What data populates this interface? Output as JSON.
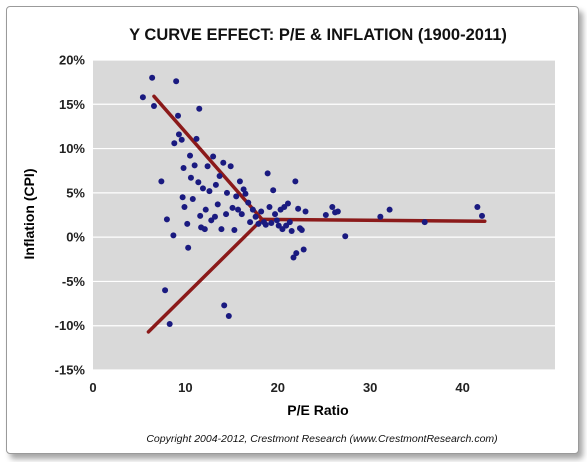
{
  "chart_data": {
    "type": "scatter",
    "title": "Y CURVE EFFECT: P/E & INFLATION (1900-2011)",
    "xlabel": "P/E Ratio",
    "ylabel": "Inflation (CPI)",
    "xlim": [
      0,
      50
    ],
    "ylim": [
      -15,
      20
    ],
    "xticks": [
      0,
      10,
      20,
      30,
      40
    ],
    "xtick_labels": [
      "0",
      "10",
      "20",
      "30",
      "40"
    ],
    "yticks": [
      -15,
      -10,
      -5,
      0,
      5,
      10,
      15,
      20
    ],
    "ytick_labels": [
      "-15%",
      "-10%",
      "-5%",
      "0%",
      "5%",
      "10%",
      "15%",
      "20%"
    ],
    "grid": "horizontal",
    "legend": "none",
    "colors": {
      "points": "#1a1a80",
      "lines": "#8b1a1a",
      "plot_bg": "#d9d9d9",
      "grid": "#ffffff"
    },
    "series": [
      {
        "type": "scatter",
        "points": [
          [
            5.4,
            15.8
          ],
          [
            6.4,
            18.0
          ],
          [
            6.6,
            14.8
          ],
          [
            7.4,
            6.3
          ],
          [
            7.8,
            -6.0
          ],
          [
            8.0,
            2.0
          ],
          [
            8.3,
            -9.8
          ],
          [
            8.7,
            0.2
          ],
          [
            8.8,
            10.6
          ],
          [
            9.0,
            17.6
          ],
          [
            9.2,
            13.7
          ],
          [
            9.3,
            11.6
          ],
          [
            9.6,
            11.0
          ],
          [
            9.7,
            4.5
          ],
          [
            9.8,
            7.8
          ],
          [
            9.9,
            3.4
          ],
          [
            10.2,
            1.5
          ],
          [
            10.3,
            -1.2
          ],
          [
            10.5,
            9.2
          ],
          [
            10.6,
            6.7
          ],
          [
            10.8,
            4.3
          ],
          [
            11.0,
            8.1
          ],
          [
            11.2,
            11.1
          ],
          [
            11.4,
            6.2
          ],
          [
            11.5,
            14.5
          ],
          [
            11.6,
            2.4
          ],
          [
            11.7,
            1.1
          ],
          [
            11.9,
            5.5
          ],
          [
            12.1,
            0.9
          ],
          [
            12.2,
            3.1
          ],
          [
            12.4,
            8.0
          ],
          [
            12.6,
            5.2
          ],
          [
            12.8,
            1.9
          ],
          [
            13.0,
            9.1
          ],
          [
            13.2,
            2.3
          ],
          [
            13.3,
            5.9
          ],
          [
            13.5,
            3.7
          ],
          [
            13.7,
            6.9
          ],
          [
            13.9,
            0.9
          ],
          [
            14.1,
            8.4
          ],
          [
            14.2,
            -7.7
          ],
          [
            14.4,
            2.6
          ],
          [
            14.5,
            5.0
          ],
          [
            14.7,
            -8.9
          ],
          [
            14.9,
            8.0
          ],
          [
            15.1,
            3.3
          ],
          [
            15.3,
            0.8
          ],
          [
            15.5,
            4.6
          ],
          [
            15.7,
            3.1
          ],
          [
            15.9,
            6.3
          ],
          [
            16.1,
            2.6
          ],
          [
            16.3,
            5.4
          ],
          [
            16.5,
            4.9
          ],
          [
            16.8,
            3.9
          ],
          [
            17.0,
            1.7
          ],
          [
            17.3,
            3.1
          ],
          [
            17.6,
            2.3
          ],
          [
            17.9,
            1.5
          ],
          [
            18.2,
            2.9
          ],
          [
            18.5,
            1.7
          ],
          [
            18.7,
            1.4
          ],
          [
            18.9,
            7.2
          ],
          [
            19.1,
            3.4
          ],
          [
            19.3,
            1.6
          ],
          [
            19.5,
            5.3
          ],
          [
            19.7,
            2.6
          ],
          [
            19.9,
            1.9
          ],
          [
            20.1,
            1.3
          ],
          [
            20.3,
            3.1
          ],
          [
            20.5,
            0.9
          ],
          [
            20.7,
            3.4
          ],
          [
            20.9,
            1.3
          ],
          [
            21.1,
            3.8
          ],
          [
            21.3,
            1.7
          ],
          [
            21.5,
            0.7
          ],
          [
            21.7,
            -2.3
          ],
          [
            21.9,
            6.3
          ],
          [
            22.0,
            -1.8
          ],
          [
            22.2,
            3.2
          ],
          [
            22.4,
            1.0
          ],
          [
            22.6,
            0.8
          ],
          [
            22.8,
            -1.4
          ],
          [
            23.0,
            2.9
          ],
          [
            25.2,
            2.5
          ],
          [
            25.9,
            3.4
          ],
          [
            26.2,
            2.8
          ],
          [
            26.5,
            2.9
          ],
          [
            27.3,
            0.1
          ],
          [
            31.1,
            2.3
          ],
          [
            32.1,
            3.1
          ],
          [
            35.9,
            1.7
          ],
          [
            41.6,
            3.4
          ],
          [
            42.1,
            2.4
          ]
        ]
      },
      {
        "type": "line",
        "points": [
          [
            6.6,
            15.9
          ],
          [
            18.3,
            2.0
          ]
        ]
      },
      {
        "type": "line",
        "points": [
          [
            6.0,
            -10.7
          ],
          [
            18.3,
            2.0
          ]
        ]
      },
      {
        "type": "line",
        "points": [
          [
            18.3,
            2.0
          ],
          [
            42.4,
            1.8
          ]
        ]
      }
    ]
  },
  "footer": {
    "copyright": "Copyright 2004-2012, Crestmont Research (www.CrestmontResearch.com)"
  }
}
